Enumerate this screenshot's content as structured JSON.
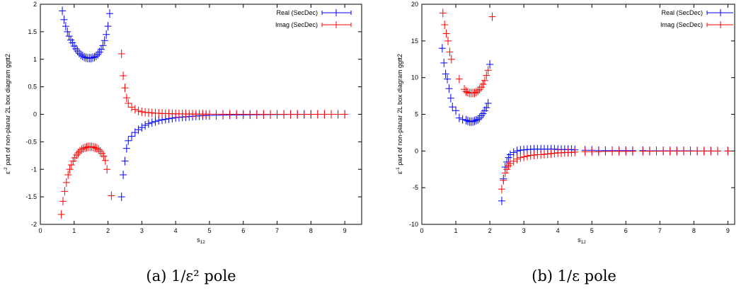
{
  "chart_data": [
    {
      "type": "scatter",
      "panel_caption": "(a) 1/ε² pole",
      "xlabel": "s",
      "xlabel_sub": "12",
      "ylabel": "ε",
      "ylabel_sup": "-2",
      "ylabel_rest": " part of non-planar 2L box diagram ggtt2",
      "xlim": [
        0,
        9.5
      ],
      "ylim": [
        -2,
        2
      ],
      "xticks": [
        "0",
        "1",
        "2",
        "3",
        "4",
        "5",
        "6",
        "7",
        "8",
        "9"
      ],
      "yticks": [
        "-2",
        "-1.5",
        "-1",
        "-0.5",
        "0",
        "0.5",
        "1",
        "1.5",
        "2"
      ],
      "legend_position": "top-right",
      "grid": false,
      "series": [
        {
          "name": "Real (SecDec)",
          "color": "#0000ff",
          "x": [
            0.65,
            0.7,
            0.75,
            0.8,
            0.85,
            0.9,
            0.95,
            1.0,
            1.05,
            1.1,
            1.15,
            1.2,
            1.25,
            1.3,
            1.35,
            1.4,
            1.45,
            1.5,
            1.55,
            1.6,
            1.65,
            1.7,
            1.75,
            1.8,
            1.85,
            1.9,
            1.95,
            2.0,
            2.05,
            2.4,
            2.45,
            2.5,
            2.55,
            2.6,
            2.7,
            2.8,
            2.9,
            3.0,
            3.1,
            3.2,
            3.3,
            3.4,
            3.5,
            3.6,
            3.7,
            3.8,
            3.9,
            4.0,
            4.1,
            4.2,
            4.3,
            4.4,
            4.5,
            4.6,
            4.7,
            4.8,
            4.9,
            5.0,
            5.2,
            5.4,
            5.6,
            5.8,
            6.0,
            6.2,
            6.4,
            6.6,
            6.8,
            7.0,
            7.2,
            7.4,
            7.6,
            7.8,
            8.0,
            8.2,
            8.4,
            8.6,
            8.8,
            9.0
          ],
          "y": [
            1.88,
            1.72,
            1.6,
            1.5,
            1.42,
            1.35,
            1.3,
            1.24,
            1.19,
            1.15,
            1.11,
            1.08,
            1.06,
            1.04,
            1.03,
            1.02,
            1.02,
            1.02,
            1.03,
            1.04,
            1.06,
            1.09,
            1.13,
            1.18,
            1.25,
            1.34,
            1.45,
            1.6,
            1.83,
            -1.5,
            -1.1,
            -0.85,
            -0.62,
            -0.48,
            -0.4,
            -0.33,
            -0.28,
            -0.24,
            -0.2,
            -0.17,
            -0.15,
            -0.13,
            -0.11,
            -0.1,
            -0.09,
            -0.08,
            -0.07,
            -0.06,
            -0.055,
            -0.05,
            -0.045,
            -0.04,
            -0.036,
            -0.032,
            -0.028,
            -0.025,
            -0.022,
            -0.02,
            -0.017,
            -0.015,
            -0.013,
            -0.011,
            -0.01,
            -0.008,
            -0.007,
            -0.006,
            -0.005,
            -0.004,
            -0.003,
            -0.002,
            -0.002,
            -0.001,
            -0.001,
            0,
            0,
            0,
            0,
            0
          ]
        },
        {
          "name": "Imag (SecDec)",
          "color": "#ff0000",
          "x": [
            0.62,
            0.67,
            0.72,
            0.77,
            0.82,
            0.87,
            0.92,
            0.97,
            1.02,
            1.07,
            1.12,
            1.17,
            1.22,
            1.27,
            1.32,
            1.37,
            1.42,
            1.47,
            1.52,
            1.57,
            1.62,
            1.67,
            1.72,
            1.77,
            1.82,
            1.87,
            1.92,
            1.97,
            2.1,
            2.4,
            2.45,
            2.5,
            2.55,
            2.6,
            2.7,
            2.8,
            2.9,
            3.0,
            3.1,
            3.2,
            3.3,
            3.4,
            3.5,
            3.6,
            3.7,
            3.8,
            3.9,
            4.0,
            4.1,
            4.2,
            4.3,
            4.4,
            4.5,
            4.6,
            4.7,
            4.8,
            4.9,
            5.0,
            5.2,
            5.4,
            5.6,
            5.8,
            6.0,
            6.2,
            6.4,
            6.6,
            6.8,
            7.0,
            7.2,
            7.4,
            7.6,
            7.8,
            8.0,
            8.2,
            8.4,
            8.6,
            8.8,
            9.0
          ],
          "y": [
            -1.82,
            -1.58,
            -1.4,
            -1.24,
            -1.1,
            -1.0,
            -0.92,
            -0.85,
            -0.79,
            -0.74,
            -0.7,
            -0.67,
            -0.64,
            -0.62,
            -0.61,
            -0.6,
            -0.59,
            -0.59,
            -0.59,
            -0.6,
            -0.61,
            -0.62,
            -0.64,
            -0.67,
            -0.71,
            -0.76,
            -0.84,
            -1.0,
            -1.48,
            1.1,
            0.7,
            0.48,
            0.3,
            0.2,
            0.13,
            0.09,
            0.06,
            0.045,
            0.035,
            0.03,
            0.025,
            0.02,
            0.018,
            0.015,
            0.013,
            0.012,
            0.01,
            0.009,
            0.008,
            0.007,
            0.006,
            0.005,
            0.004,
            0.004,
            0.003,
            0.003,
            0.002,
            0.002,
            0.002,
            0.001,
            0.001,
            0.001,
            0,
            0,
            0,
            0,
            0,
            0,
            0,
            0,
            0,
            0,
            0,
            0,
            0,
            0,
            0,
            0
          ]
        }
      ]
    },
    {
      "type": "scatter",
      "panel_caption": "(b) 1/ε pole",
      "xlabel": "s",
      "xlabel_sub": "12",
      "ylabel": "ε",
      "ylabel_sup": "-1",
      "ylabel_rest": " part of non-planar 2L box diagram ggtt2",
      "xlim": [
        0,
        9.2
      ],
      "ylim": [
        -10,
        20
      ],
      "xticks": [
        "0",
        "1",
        "2",
        "3",
        "4",
        "5",
        "6",
        "7",
        "8",
        "9"
      ],
      "yticks": [
        "-10",
        "-5",
        "0",
        "5",
        "10",
        "15",
        "20"
      ],
      "legend_position": "top-right",
      "grid": false,
      "series": [
        {
          "name": "Real (SecDec)",
          "color": "#0000ff",
          "x": [
            0.6,
            0.65,
            0.7,
            0.75,
            0.8,
            0.85,
            0.9,
            1.0,
            1.1,
            1.2,
            1.3,
            1.35,
            1.4,
            1.45,
            1.5,
            1.55,
            1.6,
            1.65,
            1.7,
            1.75,
            1.8,
            1.85,
            1.9,
            1.95,
            2.0,
            2.35,
            2.4,
            2.45,
            2.5,
            2.55,
            2.6,
            2.7,
            2.8,
            2.9,
            3.0,
            3.1,
            3.2,
            3.3,
            3.4,
            3.5,
            3.6,
            3.7,
            3.8,
            3.9,
            4.0,
            4.1,
            4.2,
            4.3,
            4.4,
            4.5,
            4.8,
            5.0,
            5.2,
            5.4,
            5.6,
            5.8,
            6.0,
            6.2,
            6.5,
            6.7,
            6.9,
            7.1,
            7.3,
            7.5,
            7.7,
            7.9,
            8.1,
            8.3,
            8.5,
            8.7,
            9.0
          ],
          "y": [
            14.0,
            12.0,
            10.5,
            9.8,
            8.5,
            7.2,
            6.0,
            5.5,
            4.5,
            4.3,
            4.2,
            4.1,
            4.0,
            4.0,
            4.0,
            4.1,
            4.2,
            4.3,
            4.5,
            4.8,
            5.1,
            5.5,
            5.9,
            6.5,
            11.8,
            -6.8,
            -3.8,
            -2.2,
            -1.5,
            -0.9,
            -0.5,
            -0.2,
            0.0,
            0.1,
            0.15,
            0.2,
            0.22,
            0.25,
            0.25,
            0.25,
            0.25,
            0.25,
            0.25,
            0.25,
            0.2,
            0.2,
            0.2,
            0.2,
            0.2,
            0.15,
            0.1,
            0.1,
            0.05,
            0.05,
            0.05,
            0.05,
            0.05,
            0.05,
            0.05,
            0.02,
            0.02,
            0.02,
            0.02,
            0.02,
            0.02,
            0.02,
            0.0,
            0.0,
            0.0,
            0.0,
            0.0
          ]
        },
        {
          "name": "Imag (SecDec)",
          "color": "#ff0000",
          "x": [
            0.62,
            0.67,
            0.72,
            0.77,
            0.82,
            0.87,
            1.1,
            1.25,
            1.3,
            1.35,
            1.4,
            1.45,
            1.5,
            1.55,
            1.6,
            1.65,
            1.7,
            1.75,
            1.8,
            1.85,
            1.9,
            1.95,
            2.07,
            2.35,
            2.4,
            2.45,
            2.5,
            2.55,
            2.6,
            2.7,
            2.8,
            2.9,
            3.0,
            3.1,
            3.2,
            3.3,
            3.4,
            3.5,
            3.6,
            3.7,
            3.8,
            3.9,
            4.0,
            4.1,
            4.2,
            4.3,
            4.4,
            4.5,
            4.8,
            5.0,
            5.2,
            5.4,
            5.6,
            5.8,
            6.0,
            6.2,
            6.5,
            6.7,
            6.9,
            7.1,
            7.3,
            7.5,
            7.7,
            7.9,
            8.1,
            8.3,
            8.5,
            8.7,
            9.0
          ],
          "y": [
            18.8,
            17.2,
            16.0,
            15.0,
            13.5,
            12.5,
            9.8,
            8.4,
            8.1,
            8.0,
            7.9,
            7.9,
            7.9,
            7.9,
            8.0,
            8.2,
            8.4,
            8.7,
            9.1,
            9.6,
            10.3,
            11.0,
            18.3,
            -5.2,
            -4.0,
            -3.0,
            -2.5,
            -2.0,
            -1.7,
            -1.4,
            -1.1,
            -0.9,
            -0.8,
            -0.7,
            -0.6,
            -0.55,
            -0.5,
            -0.5,
            -0.45,
            -0.4,
            -0.35,
            -0.3,
            -0.25,
            -0.25,
            -0.2,
            -0.2,
            -0.2,
            -0.15,
            -0.1,
            -0.1,
            -0.1,
            -0.05,
            -0.05,
            -0.05,
            -0.05,
            -0.05,
            -0.03,
            -0.03,
            -0.03,
            -0.02,
            -0.02,
            -0.02,
            -0.02,
            -0.02,
            -0.01,
            -0.01,
            -0.01,
            -0.01,
            -0.01
          ]
        }
      ]
    }
  ]
}
